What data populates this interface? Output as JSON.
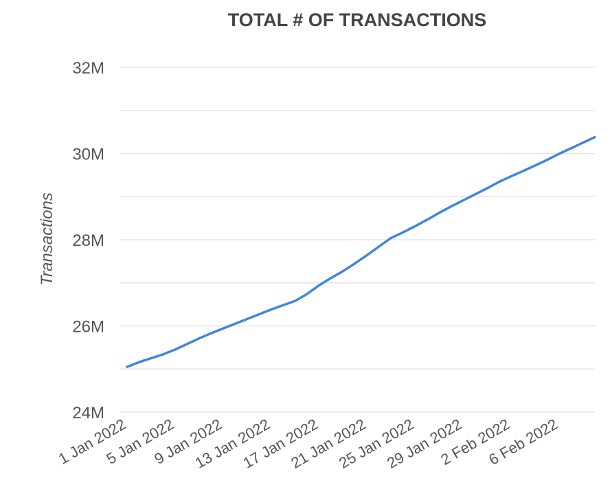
{
  "chart_data": {
    "type": "line",
    "title": "TOTAL # OF TRANSACTIONS",
    "xlabel": "",
    "ylabel": "Transactions",
    "x_tick_labels": [
      "1 Jan 2022",
      "5 Jan 2022",
      "9 Jan 2022",
      "13 Jan 2022",
      "17 Jan 2022",
      "21 Jan 2022",
      "25 Jan 2022",
      "29 Jan 2022",
      "2 Feb 2022",
      "6 Feb 2022"
    ],
    "y_tick_labels": [
      "24M",
      "26M",
      "28M",
      "30M",
      "32M"
    ],
    "y_ticks": [
      24000000,
      26000000,
      28000000,
      30000000,
      32000000
    ],
    "xlim": [
      "2022-01-01",
      "2022-02-09"
    ],
    "ylim": [
      24000000,
      32000000
    ],
    "grid": true,
    "line_color": "#3f86df",
    "series": [
      {
        "x": [
          "2022-01-01",
          "2022-01-02",
          "2022-01-03",
          "2022-01-04",
          "2022-01-05",
          "2022-01-06",
          "2022-01-07",
          "2022-01-08",
          "2022-01-09",
          "2022-01-10",
          "2022-01-11",
          "2022-01-12",
          "2022-01-13",
          "2022-01-14",
          "2022-01-15",
          "2022-01-16",
          "2022-01-17",
          "2022-01-18",
          "2022-01-19",
          "2022-01-20",
          "2022-01-21",
          "2022-01-22",
          "2022-01-23",
          "2022-01-24",
          "2022-01-25",
          "2022-01-26",
          "2022-01-27",
          "2022-01-28",
          "2022-01-29",
          "2022-01-30",
          "2022-01-31",
          "2022-02-01",
          "2022-02-02",
          "2022-02-03",
          "2022-02-04",
          "2022-02-05",
          "2022-02-06",
          "2022-02-07",
          "2022-02-08",
          "2022-02-09"
        ],
        "values": [
          25050000,
          25160000,
          25250000,
          25340000,
          25450000,
          25580000,
          25710000,
          25830000,
          25940000,
          26050000,
          26160000,
          26270000,
          26380000,
          26480000,
          26580000,
          26740000,
          26940000,
          27110000,
          27270000,
          27450000,
          27640000,
          27840000,
          28040000,
          28170000,
          28310000,
          28460000,
          28620000,
          28770000,
          28910000,
          29050000,
          29190000,
          29340000,
          29470000,
          29590000,
          29720000,
          29850000,
          29990000,
          30120000,
          30250000,
          30380000
        ]
      }
    ]
  }
}
